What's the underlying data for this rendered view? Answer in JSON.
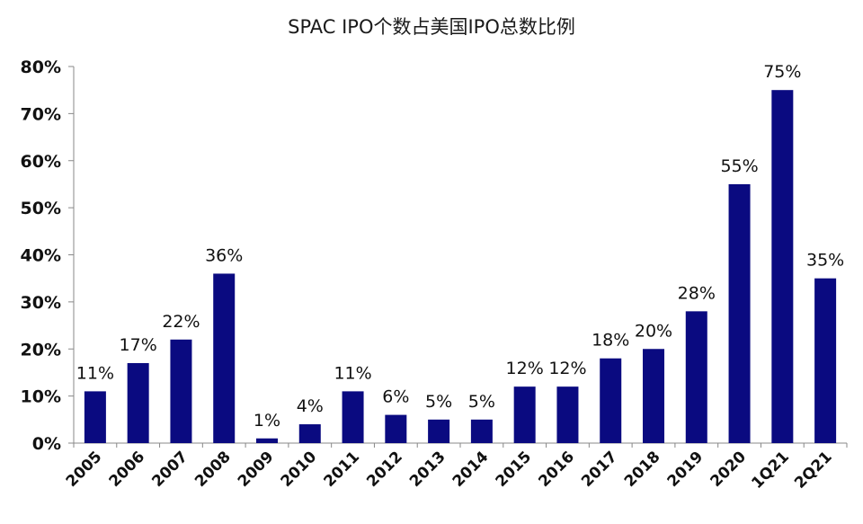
{
  "chart_data": {
    "type": "bar",
    "title": "SPAC IPO个数占美国IPO总数比例",
    "categories": [
      "2005",
      "2006",
      "2007",
      "2008",
      "2009",
      "2010",
      "2011",
      "2012",
      "2013",
      "2014",
      "2015",
      "2016",
      "2017",
      "2018",
      "2019",
      "2020",
      "1Q21",
      "2Q21"
    ],
    "values": [
      11,
      17,
      22,
      36,
      1,
      4,
      11,
      6,
      5,
      5,
      12,
      12,
      18,
      20,
      28,
      55,
      75,
      35
    ],
    "data_labels": [
      "11%",
      "17%",
      "22%",
      "36%",
      "1%",
      "4%",
      "11%",
      "6%",
      "5%",
      "5%",
      "12%",
      "12%",
      "18%",
      "20%",
      "28%",
      "55%",
      "75%",
      "35%"
    ],
    "xlabel": "",
    "ylabel": "",
    "ylim": [
      0,
      80
    ],
    "yticks": [
      0,
      10,
      20,
      30,
      40,
      50,
      60,
      70,
      80
    ],
    "ytick_labels": [
      "0%",
      "10%",
      "20%",
      "30%",
      "40%",
      "50%",
      "60%",
      "70%",
      "80%"
    ],
    "grid": false,
    "bar_color": "#0a0a80"
  }
}
